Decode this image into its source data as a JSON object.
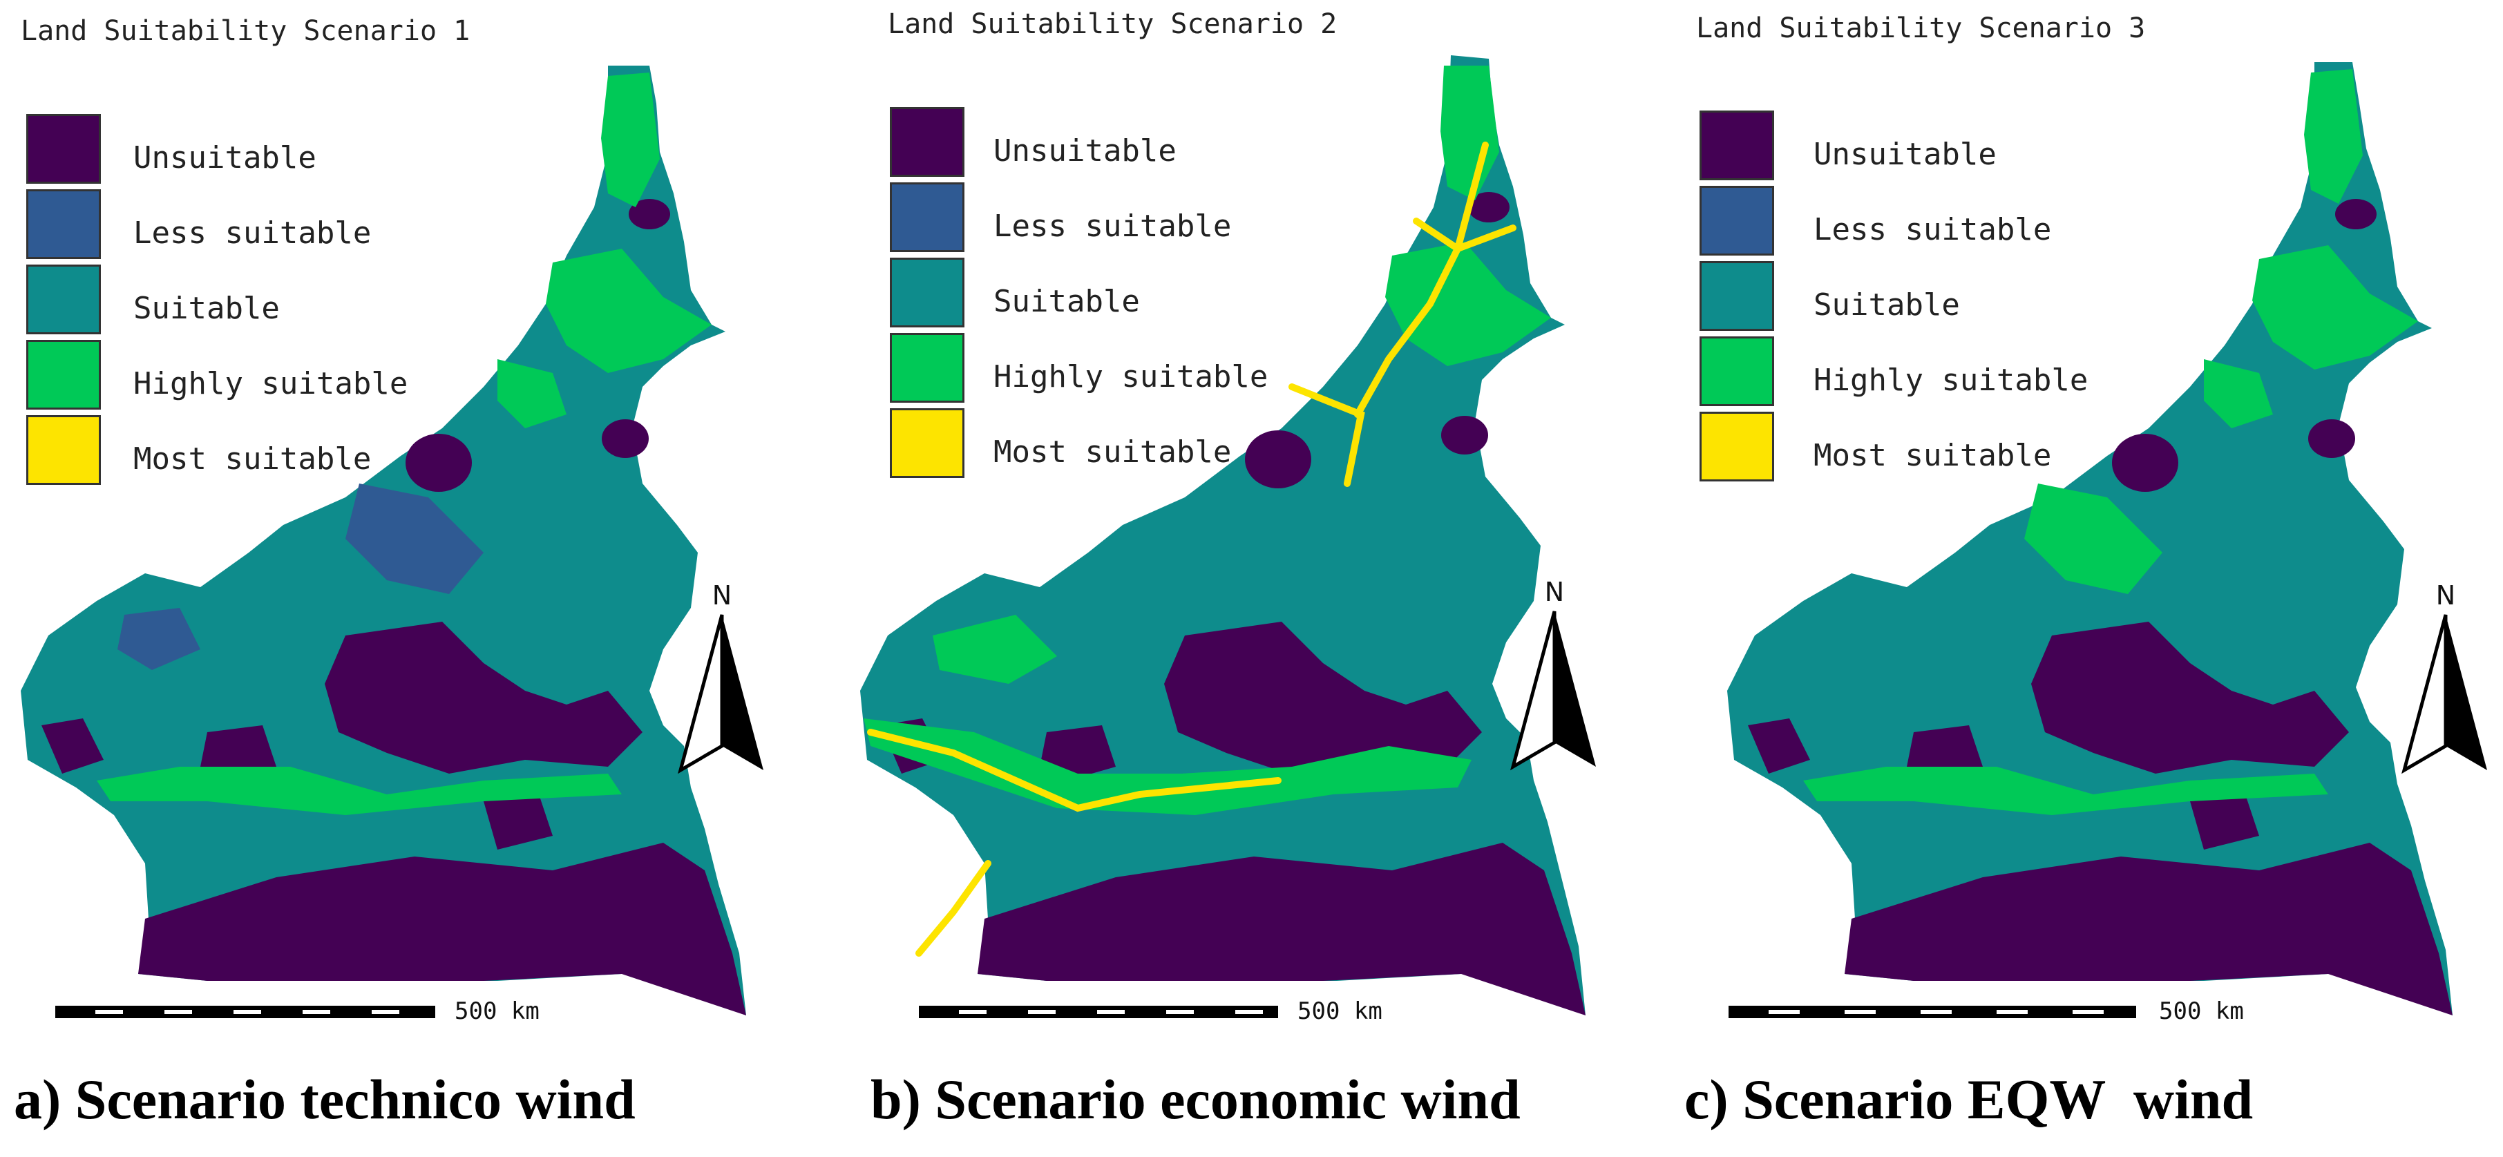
{
  "legend": {
    "colors": [
      "#440154",
      "#2f5a93",
      "#0e8c8c",
      "#00c957",
      "#fde400"
    ],
    "items": [
      {
        "label": "Unsuitable"
      },
      {
        "label": "Less suitable"
      },
      {
        "label": "Suitable"
      },
      {
        "label": "Highly suitable"
      },
      {
        "label": "Most suitable"
      }
    ]
  },
  "north_label": "N",
  "scale_label": "500 km",
  "panels": [
    {
      "title": "Land Suitability Scenario 1",
      "caption": "a) Scenario technico wind"
    },
    {
      "title": "Land Suitability Scenario 2",
      "caption": "b) Scenario economic wind"
    },
    {
      "title": "Land Suitability Scenario 3",
      "caption": "c) Scenario EQW  wind"
    }
  ]
}
